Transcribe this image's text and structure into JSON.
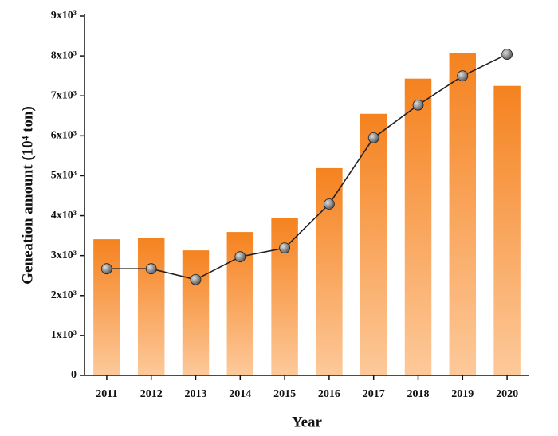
{
  "chart_data": {
    "type": "bar-line",
    "x_label": "Year",
    "y_label": "Geneation amount (10⁴ ton)",
    "categories": [
      "2011",
      "2012",
      "2013",
      "2014",
      "2015",
      "2016",
      "2017",
      "2018",
      "2019",
      "2020"
    ],
    "series": [
      {
        "type": "bar",
        "color": "#f5821f",
        "color_end": "#fdc99a",
        "values": [
          3410,
          3450,
          3130,
          3590,
          3950,
          5190,
          6550,
          7430,
          8080,
          7250
        ]
      },
      {
        "type": "line",
        "color": "#222222",
        "marker_color": "#555555",
        "values": [
          2670,
          2670,
          2400,
          2970,
          3190,
          4290,
          5950,
          6770,
          7500,
          8040
        ]
      }
    ],
    "ylim": [
      0,
      9000
    ],
    "yticks": [
      0,
      {
        "value": 1000,
        "label": "1x10³"
      },
      {
        "value": 2000,
        "label": "2x10³"
      },
      {
        "value": 3000,
        "label": "3x10³"
      },
      {
        "value": 4000,
        "label": "4x10³"
      },
      {
        "value": 5000,
        "label": "5x10³"
      },
      {
        "value": 6000,
        "label": "6x10³"
      },
      {
        "value": 7000,
        "label": "7x10³"
      },
      {
        "value": 8000,
        "label": "8x10³"
      },
      {
        "value": 9000,
        "label": "9x10³"
      }
    ],
    "grid": false
  }
}
